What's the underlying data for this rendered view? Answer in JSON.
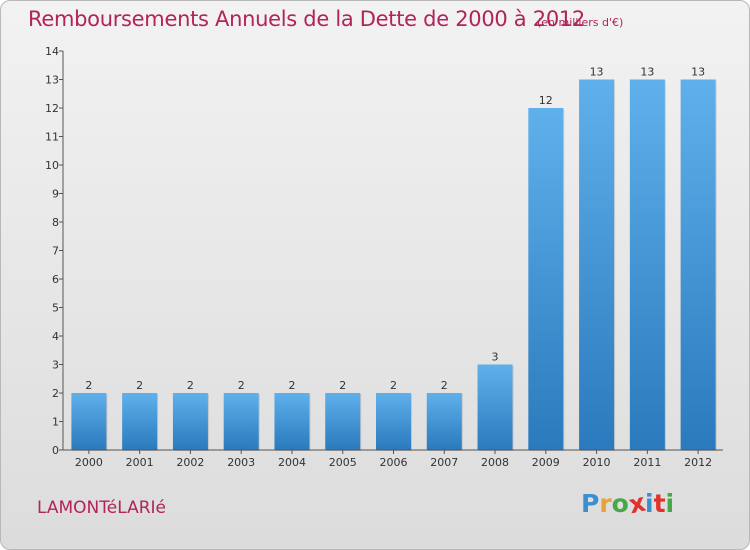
{
  "title": "Remboursements Annuels de la Dette de 2000 à 2012",
  "subtitle": "(en milliers d'€)",
  "place": "LAMONTéLARIé",
  "logo": {
    "text": "Proxiti"
  },
  "colors": {
    "title": "#b2235a",
    "bar_top": "#5fb0eb",
    "bar_bottom": "#2a7abd",
    "logo": [
      "#3a8fd1",
      "#e8a23a",
      "#46a846",
      "#e0312d",
      "#3a8fd1",
      "#e0312d",
      "#46a846"
    ]
  },
  "chart_data": {
    "type": "bar",
    "title": "Remboursements Annuels de la Dette de 2000 à 2012",
    "subtitle": "(en milliers d'€)",
    "categories": [
      "2000",
      "2001",
      "2002",
      "2003",
      "2004",
      "2005",
      "2006",
      "2007",
      "2008",
      "2009",
      "2010",
      "2011",
      "2012"
    ],
    "values": [
      2,
      2,
      2,
      2,
      2,
      2,
      2,
      2,
      3,
      12,
      13,
      13,
      13
    ],
    "data_labels": [
      "2",
      "2",
      "2",
      "2",
      "2",
      "2",
      "2",
      "2",
      "3",
      "12",
      "13",
      "13",
      "13"
    ],
    "y_ticks": [
      "0",
      "1",
      "2",
      "3",
      "4",
      "5",
      "6",
      "7",
      "8",
      "9",
      "10",
      "11",
      "12",
      "13",
      "14"
    ],
    "ylim": [
      0,
      14
    ],
    "grid": false,
    "legend": "none"
  }
}
